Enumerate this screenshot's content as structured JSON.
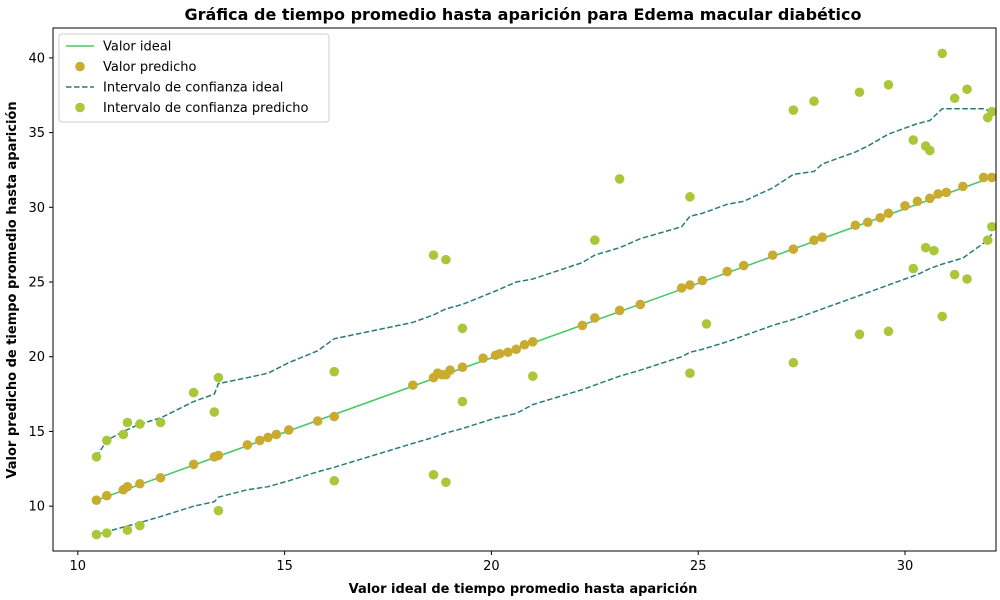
{
  "chart_data": {
    "type": "scatter",
    "title": "Gráfica de tiempo promedio hasta aparición para Edema macular diabético",
    "xlabel": "Valor ideal de tiempo promedio hasta aparición",
    "ylabel": "Valor predicho de tiempo promedio hasta aparición",
    "xlim": [
      9.4,
      32.2
    ],
    "ylim": [
      7.0,
      42.0
    ],
    "xticks": [
      "10",
      "15",
      "20",
      "25",
      "30"
    ],
    "yticks": [
      "10",
      "15",
      "20",
      "25",
      "30",
      "35",
      "40"
    ],
    "grid": false,
    "legend_position": "top-left",
    "legend": [
      {
        "label": "Valor ideal",
        "kind": "line",
        "color": "#4cc76b"
      },
      {
        "label": "Valor predicho",
        "kind": "marker",
        "color": "#c9ab2f"
      },
      {
        "label": "Intervalo de confianza ideal",
        "kind": "dashed",
        "color": "#2b7b7b"
      },
      {
        "label": "Intervalo de confianza predicho",
        "kind": "marker",
        "color": "#a9c739"
      }
    ],
    "series": [
      {
        "name": "Valor ideal",
        "style": "line",
        "color": "#4cc76b",
        "x": [
          10.45,
          32.1
        ],
        "y": [
          10.4,
          32.0
        ]
      },
      {
        "name": "Valor predicho",
        "style": "scatter",
        "color": "#c9ab2f",
        "x": [
          10.45,
          10.7,
          11.1,
          11.2,
          11.5,
          12.0,
          12.8,
          13.3,
          13.4,
          14.1,
          14.4,
          14.6,
          14.8,
          15.1,
          15.8,
          16.2,
          18.1,
          18.6,
          18.7,
          18.8,
          18.9,
          19.0,
          19.3,
          19.8,
          20.1,
          20.2,
          20.4,
          20.6,
          20.8,
          21.0,
          22.2,
          22.5,
          23.1,
          23.6,
          24.6,
          24.8,
          25.1,
          25.7,
          26.1,
          26.8,
          27.3,
          27.8,
          28.0,
          28.8,
          29.1,
          29.4,
          29.6,
          30.0,
          30.3,
          30.6,
          30.8,
          31.0,
          31.4,
          31.9,
          32.1
        ],
        "y": [
          10.4,
          10.7,
          11.1,
          11.3,
          11.5,
          11.9,
          12.8,
          13.3,
          13.4,
          14.1,
          14.4,
          14.6,
          14.8,
          15.1,
          15.7,
          16.0,
          18.1,
          18.6,
          18.9,
          18.8,
          18.8,
          19.1,
          19.3,
          19.9,
          20.1,
          20.2,
          20.3,
          20.5,
          20.8,
          21.0,
          22.1,
          22.6,
          23.1,
          23.5,
          24.6,
          24.8,
          25.1,
          25.7,
          26.1,
          26.8,
          27.2,
          27.8,
          28.0,
          28.8,
          29.0,
          29.3,
          29.6,
          30.1,
          30.4,
          30.6,
          30.9,
          31.0,
          31.4,
          32.0,
          32.0
        ]
      },
      {
        "name": "Intervalo de confianza predicho",
        "style": "scatter",
        "color": "#a9c739",
        "x": [
          10.45,
          10.7,
          11.1,
          11.2,
          11.5,
          12.0,
          12.8,
          13.3,
          13.4,
          16.2,
          18.6,
          18.9,
          19.3,
          22.5,
          23.1,
          24.8,
          27.3,
          27.8,
          28.9,
          29.6,
          30.2,
          30.5,
          30.6,
          30.9,
          31.2,
          31.5,
          32.0,
          32.1,
          10.45,
          10.7,
          11.2,
          11.5,
          13.4,
          16.2,
          18.6,
          18.9,
          19.3,
          21.0,
          24.8,
          25.2,
          27.3,
          28.9,
          29.6,
          30.2,
          30.5,
          30.7,
          30.9,
          31.2,
          31.5,
          32.0,
          32.1
        ],
        "y": [
          13.3,
          14.4,
          14.8,
          15.6,
          15.5,
          15.6,
          17.6,
          16.3,
          18.6,
          19.0,
          26.8,
          26.5,
          21.9,
          27.8,
          31.9,
          30.7,
          36.5,
          37.1,
          37.7,
          38.2,
          34.5,
          34.1,
          33.8,
          40.3,
          37.3,
          37.9,
          36.0,
          36.4,
          8.1,
          8.2,
          8.4,
          8.7,
          9.7,
          11.7,
          12.1,
          11.6,
          17.0,
          18.7,
          18.9,
          22.2,
          19.6,
          21.5,
          21.7,
          25.9,
          27.3,
          27.1,
          22.7,
          25.5,
          25.2,
          27.8,
          28.7
        ]
      },
      {
        "name": "Intervalo de confianza ideal",
        "style": "dashed",
        "color": "#2b7b7b",
        "upper_x": [
          10.45,
          10.7,
          11.1,
          11.5,
          12.0,
          12.8,
          13.3,
          13.4,
          14.1,
          14.6,
          15.1,
          15.8,
          16.2,
          18.1,
          18.6,
          18.9,
          19.3,
          20.1,
          20.6,
          21.0,
          22.2,
          22.5,
          23.1,
          23.6,
          24.6,
          24.8,
          25.1,
          25.7,
          26.1,
          26.8,
          27.3,
          27.8,
          28.0,
          28.8,
          29.1,
          29.6,
          30.0,
          30.3,
          30.6,
          30.9,
          31.4,
          31.9,
          32.1
        ],
        "upper_y": [
          13.3,
          14.4,
          15.0,
          15.5,
          15.9,
          17.0,
          17.5,
          18.2,
          18.6,
          18.9,
          19.6,
          20.4,
          21.2,
          22.3,
          22.8,
          23.2,
          23.5,
          24.4,
          25.0,
          25.2,
          26.3,
          26.8,
          27.3,
          27.9,
          28.7,
          29.4,
          29.6,
          30.2,
          30.4,
          31.3,
          32.2,
          32.4,
          32.9,
          33.7,
          34.1,
          34.9,
          35.3,
          35.6,
          35.8,
          36.6,
          36.6,
          36.6,
          36.4
        ],
        "lower_x": [
          10.45,
          10.7,
          11.1,
          11.5,
          12.0,
          12.8,
          13.3,
          13.4,
          14.1,
          14.6,
          15.1,
          15.8,
          16.2,
          18.1,
          18.6,
          18.9,
          19.3,
          20.1,
          20.6,
          21.0,
          22.2,
          22.5,
          23.1,
          23.6,
          24.6,
          24.8,
          25.1,
          25.7,
          26.1,
          26.8,
          27.3,
          27.8,
          28.0,
          28.8,
          29.1,
          29.6,
          30.0,
          30.3,
          30.6,
          30.9,
          31.4,
          31.9,
          32.1
        ],
        "lower_y": [
          8.1,
          8.3,
          8.6,
          8.9,
          9.3,
          10.0,
          10.3,
          10.6,
          11.1,
          11.3,
          11.7,
          12.3,
          12.6,
          14.2,
          14.6,
          14.9,
          15.2,
          15.9,
          16.2,
          16.8,
          17.8,
          18.1,
          18.7,
          19.1,
          20.0,
          20.3,
          20.5,
          21.0,
          21.4,
          22.1,
          22.5,
          23.0,
          23.2,
          24.0,
          24.3,
          24.8,
          25.2,
          25.5,
          25.9,
          26.2,
          26.6,
          27.6,
          28.2
        ]
      }
    ]
  }
}
